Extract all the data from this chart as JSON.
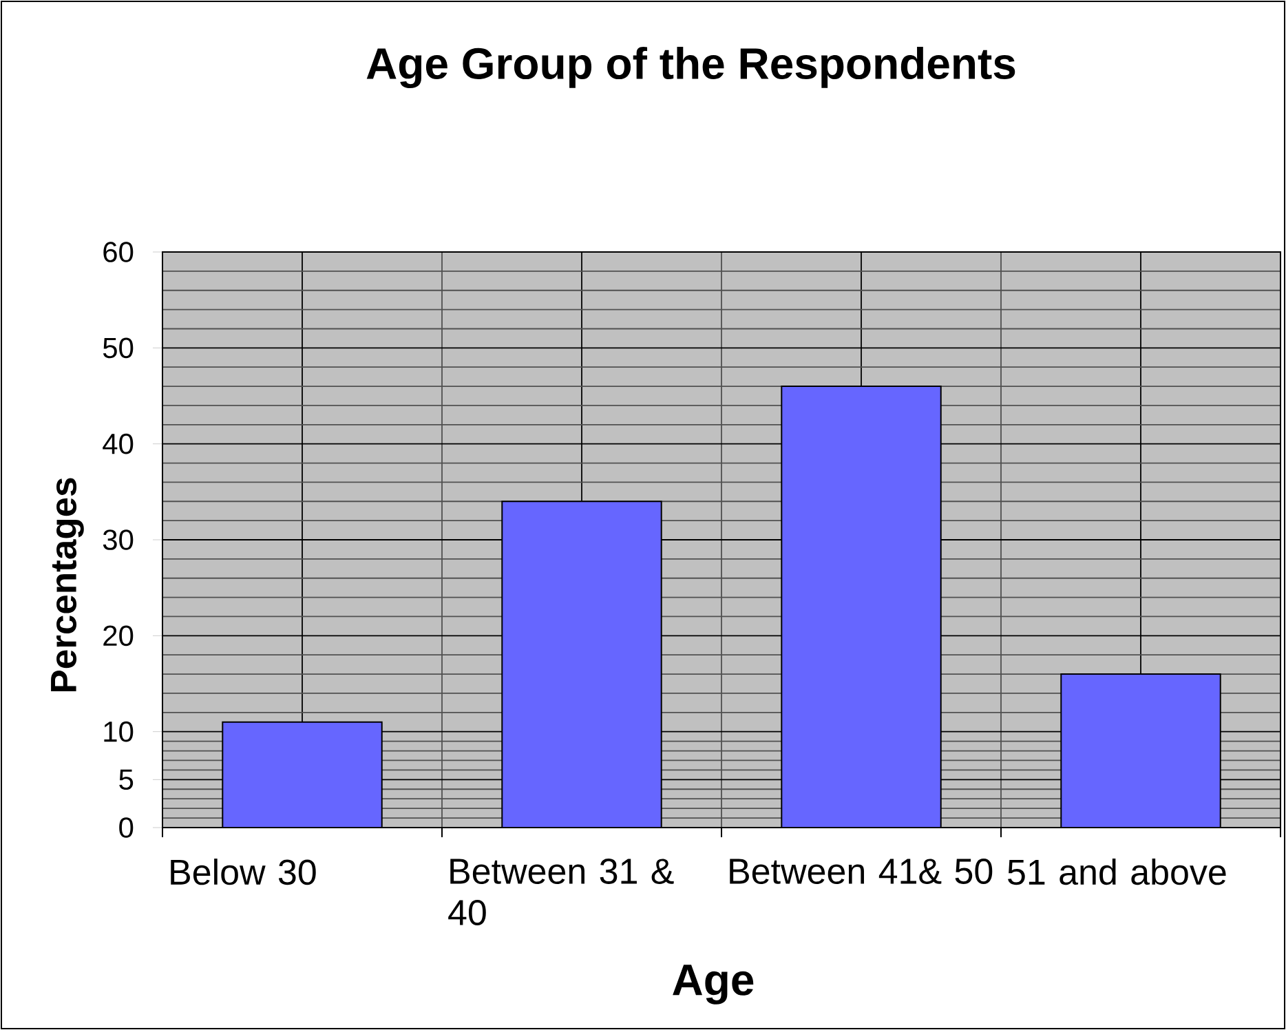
{
  "chart_data": {
    "type": "bar",
    "title": "Age Group of the Respondents",
    "xlabel": "Age",
    "ylabel": "Percentages",
    "categories": [
      "Below 30",
      "Between 31 & 40",
      "Between 41& 50",
      "51 and above"
    ],
    "values": [
      11,
      34,
      46,
      16
    ],
    "color": "#6666ff",
    "ylim": [
      0,
      60
    ],
    "yticks": [
      0,
      5,
      10,
      20,
      30,
      40,
      50,
      60
    ],
    "grid": true
  }
}
